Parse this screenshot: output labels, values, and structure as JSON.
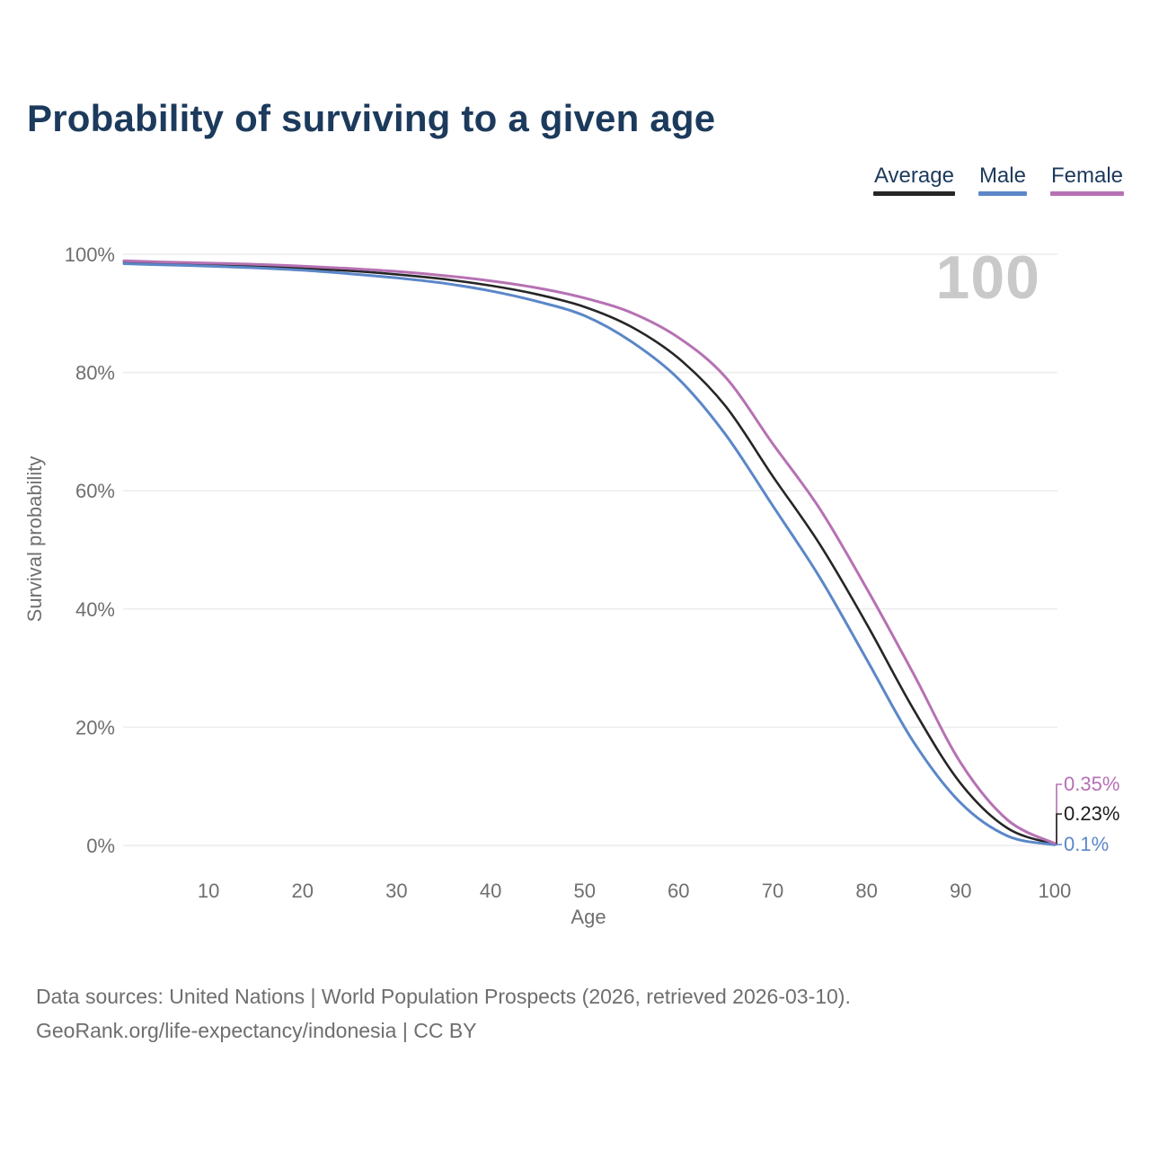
{
  "title": "Probability of surviving to a given age",
  "legend": {
    "items": [
      {
        "label": "Average",
        "color": "#262626"
      },
      {
        "label": "Male",
        "color": "#5b87c8"
      },
      {
        "label": "Female",
        "color": "#b671b3"
      }
    ]
  },
  "chart_data": {
    "type": "line",
    "title": "Probability of surviving to a given age",
    "xlabel": "Age",
    "ylabel": "Survival probability",
    "x_ticks": [
      "10",
      "20",
      "30",
      "40",
      "50",
      "60",
      "70",
      "80",
      "90",
      "100"
    ],
    "y_ticks": [
      "100%",
      "80%",
      "60%",
      "40%",
      "20%",
      "0%"
    ],
    "xlim": [
      0,
      105
    ],
    "ylim": [
      0,
      100
    ],
    "grid": "horizontal-only",
    "legend_position": "top-right",
    "age_watermark": "100",
    "ages": [
      1,
      5,
      10,
      15,
      20,
      25,
      30,
      35,
      40,
      45,
      50,
      55,
      60,
      65,
      70,
      75,
      80,
      85,
      90,
      95,
      100
    ],
    "series": [
      {
        "name": "Average",
        "color": "#262626",
        "end_label": "0.23%",
        "values": [
          98.7,
          98.5,
          98.2,
          98.0,
          97.6,
          97.2,
          96.6,
          95.8,
          94.7,
          93.2,
          91.1,
          87.7,
          82.4,
          74.3,
          62.5,
          51.0,
          37.5,
          23.0,
          10.5,
          2.9,
          0.23
        ]
      },
      {
        "name": "Male",
        "color": "#5b87c8",
        "end_label": "0.1%",
        "values": [
          98.4,
          98.2,
          98.0,
          97.7,
          97.3,
          96.7,
          96.0,
          95.1,
          93.8,
          92.0,
          89.6,
          85.2,
          78.9,
          69.5,
          57.5,
          45.4,
          31.5,
          17.5,
          7.2,
          1.6,
          0.1
        ]
      },
      {
        "name": "Female",
        "color": "#b671b3",
        "end_label": "0.35%",
        "values": [
          98.9,
          98.7,
          98.5,
          98.3,
          98.0,
          97.6,
          97.1,
          96.4,
          95.5,
          94.3,
          92.6,
          90.1,
          85.9,
          79.2,
          68.0,
          57.0,
          43.5,
          29.0,
          14.0,
          4.3,
          0.35
        ]
      }
    ]
  },
  "footer": {
    "line1": "Data sources: United Nations | World Population Prospects (2026, retrieved 2026-03-10).",
    "line2": "GeoRank.org/life-expectancy/indonesia | CC BY"
  }
}
